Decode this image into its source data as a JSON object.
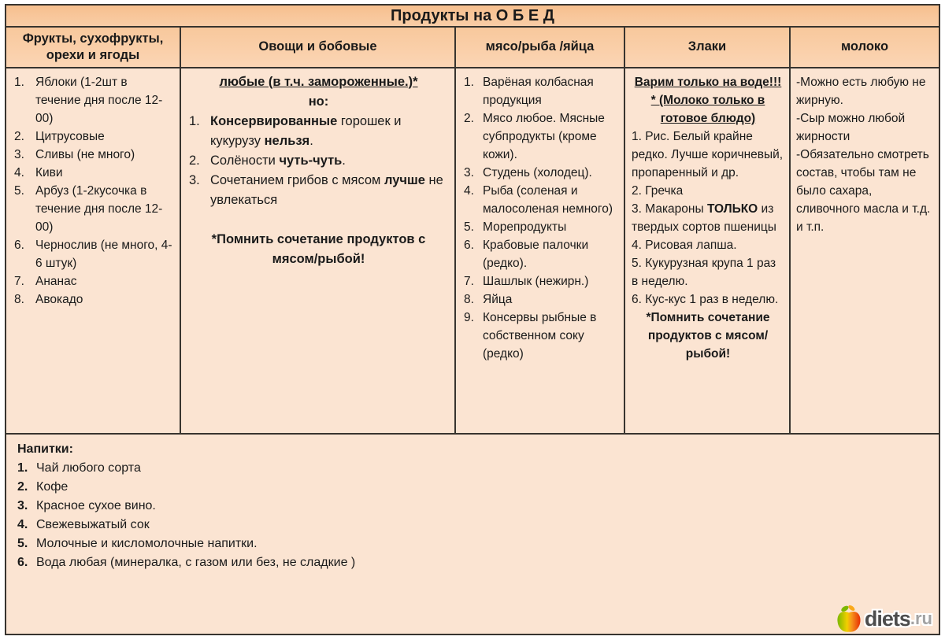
{
  "title": "Продукты на О Б Е Д",
  "colors": {
    "title_bg": "#f8c59a",
    "header_bg": "#f9cda6",
    "cell_bg": "#fbe4d2",
    "border": "#38342f",
    "text": "#1a1a1a",
    "logo_apple_green": "#7db800",
    "logo_apple_orange": "#f7941d",
    "logo_apple_red": "#e62e04",
    "logo_text": "#4d4d4d",
    "logo_suffix_text": "#a3a3a3"
  },
  "columns": [
    {
      "header": "Фрукты, сухофрукты, орехи и ягоды",
      "blocks": [
        {
          "type": "num",
          "n": "1.",
          "runs": [
            {
              "t": "Яблоки (1-2шт в течение дня после 12-00)"
            }
          ]
        },
        {
          "type": "num",
          "n": "2.",
          "runs": [
            {
              "t": "Цитрусовые"
            }
          ]
        },
        {
          "type": "num",
          "n": "3.",
          "runs": [
            {
              "t": "Сливы (не много)"
            }
          ]
        },
        {
          "type": "num",
          "n": "4.",
          "runs": [
            {
              "t": "Киви"
            }
          ]
        },
        {
          "type": "num",
          "n": "5.",
          "runs": [
            {
              "t": "Арбуз (1-2кусочка в течение дня после 12-00)"
            }
          ]
        },
        {
          "type": "num",
          "n": "6.",
          "runs": [
            {
              "t": "Чернослив (не много, 4-6 штук)"
            }
          ]
        },
        {
          "type": "num",
          "n": "7.",
          "runs": [
            {
              "t": "Ананас"
            }
          ]
        },
        {
          "type": "num",
          "n": "8.",
          "runs": [
            {
              "t": "Авокадо"
            }
          ]
        }
      ]
    },
    {
      "header": "Овощи и бобовые",
      "blocks": [
        {
          "type": "center",
          "runs": [
            {
              "t": "любые (в т.ч. замороженные.)*",
              "b": true,
              "u": true
            }
          ]
        },
        {
          "type": "center",
          "runs": [
            {
              "t": "но:",
              "b": true
            }
          ]
        },
        {
          "type": "num",
          "n": "1.",
          "runs": [
            {
              "t": "Консервированные",
              "b": true
            },
            {
              "t": " горошек и кукурузу "
            },
            {
              "t": "нельзя",
              "b": true
            },
            {
              "t": "."
            }
          ]
        },
        {
          "type": "num",
          "n": "2.",
          "runs": [
            {
              "t": "Солёности "
            },
            {
              "t": "чуть-чуть",
              "b": true
            },
            {
              "t": "."
            }
          ]
        },
        {
          "type": "num",
          "n": "3.",
          "runs": [
            {
              "t": "Сочетанием грибов с мясом "
            },
            {
              "t": "лучше",
              "b": true
            },
            {
              "t": " не увлекаться"
            }
          ]
        },
        {
          "type": "blank"
        },
        {
          "type": "center",
          "runs": [
            {
              "t": "*Помнить сочетание продуктов с мясом/рыбой!",
              "b": true
            }
          ]
        }
      ]
    },
    {
      "header": "мясо/рыба /яйца",
      "blocks": [
        {
          "type": "num",
          "n": "1.",
          "runs": [
            {
              "t": "Варёная колбасная продукция"
            }
          ]
        },
        {
          "type": "num",
          "n": "2.",
          "runs": [
            {
              "t": "Мясо любое. Мясные субпродукты (кроме кожи)."
            }
          ]
        },
        {
          "type": "num",
          "n": "3.",
          "runs": [
            {
              "t": "Студень (холодец)."
            }
          ]
        },
        {
          "type": "num",
          "n": "4.",
          "runs": [
            {
              "t": "Рыба (соленая и малосоленая немного)"
            }
          ]
        },
        {
          "type": "num",
          "n": "5.",
          "runs": [
            {
              "t": "Морепродукты"
            }
          ]
        },
        {
          "type": "num",
          "n": "6.",
          "runs": [
            {
              "t": "Крабовые палочки (редко)."
            }
          ]
        },
        {
          "type": "num",
          "n": "7.",
          "runs": [
            {
              "t": "Шашлык (нежирн.)"
            }
          ]
        },
        {
          "type": "num",
          "n": "8.",
          "runs": [
            {
              "t": "Яйца"
            }
          ]
        },
        {
          "type": "num",
          "n": "9.",
          "runs": [
            {
              "t": "Консервы рыбные в собственном соку (редко)"
            }
          ]
        }
      ]
    },
    {
      "header": "Злаки",
      "blocks": [
        {
          "type": "center",
          "runs": [
            {
              "t": "Варим только на воде!!! * (Молоко только в готовое блюдо)",
              "b": true,
              "u": true
            }
          ]
        },
        {
          "type": "plain",
          "runs": [
            {
              "t": "1. Рис. Белый крайне редко. Лучше коричневый, пропаренный и др."
            }
          ]
        },
        {
          "type": "plain",
          "runs": [
            {
              "t": "2. Гречка"
            }
          ]
        },
        {
          "type": "plain",
          "runs": [
            {
              "t": "3. Макароны "
            },
            {
              "t": "ТОЛЬКО",
              "b": true
            },
            {
              "t": " из твердых сортов пшеницы"
            }
          ]
        },
        {
          "type": "plain",
          "runs": [
            {
              "t": "4. Рисовая лапша."
            }
          ]
        },
        {
          "type": "plain",
          "runs": [
            {
              "t": "5. Кукурузная крупа 1 раз в неделю."
            }
          ]
        },
        {
          "type": "plain",
          "runs": [
            {
              "t": "6. Кус-кус 1 раз в неделю."
            }
          ]
        },
        {
          "type": "center",
          "runs": [
            {
              "t": "*Помнить сочетание продуктов с мясом/рыбой!",
              "b": true
            }
          ]
        }
      ]
    },
    {
      "header": "молоко",
      "blocks": [
        {
          "type": "plain",
          "runs": [
            {
              "t": "-Можно есть любую не жирную."
            }
          ]
        },
        {
          "type": "plain",
          "runs": [
            {
              "t": "-Сыр можно любой жирности"
            }
          ]
        },
        {
          "type": "plain",
          "runs": [
            {
              "t": "-Обязательно смотреть состав, чтобы там не было сахара, сливочного масла и т.д. и т.п."
            }
          ]
        }
      ]
    }
  ],
  "drinks": {
    "title": "Напитки:",
    "blocks": [
      {
        "type": "num",
        "n": "1.",
        "runs": [
          {
            "t": "Чай любого сорта"
          }
        ]
      },
      {
        "type": "num",
        "n": "2.",
        "runs": [
          {
            "t": "Кофе"
          }
        ]
      },
      {
        "type": "num",
        "n": "3.",
        "runs": [
          {
            "t": "Красное сухое вино."
          }
        ]
      },
      {
        "type": "num",
        "n": "4.",
        "runs": [
          {
            "t": "Свежевыжатый сок"
          }
        ]
      },
      {
        "type": "num",
        "n": "5.",
        "runs": [
          {
            "t": "Молочные и кисломолочные напитки."
          }
        ]
      },
      {
        "type": "num",
        "n": "6.",
        "runs": [
          {
            "t": "Вода любая (минералка, с газом или без,  не сладкие )"
          }
        ]
      }
    ]
  },
  "logo": {
    "icon": "apple-icon",
    "site": "diets",
    "tld": ".ru"
  }
}
